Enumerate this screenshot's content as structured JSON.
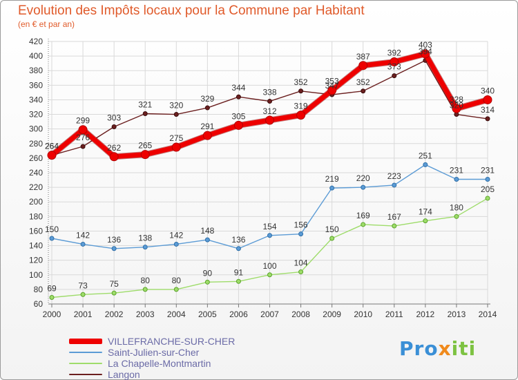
{
  "title": "Evolution des Impôts locaux pour la Commune par Habitant",
  "subtitle": "(en € et par an)",
  "logo": {
    "part1": "Pro",
    "part2": "x",
    "part3": "iti"
  },
  "chart_data": {
    "type": "line",
    "categories": [
      "2000",
      "2001",
      "2002",
      "2003",
      "2004",
      "2005",
      "2006",
      "2007",
      "2008",
      "2009",
      "2010",
      "2011",
      "2012",
      "2013",
      "2014"
    ],
    "ylim": [
      60,
      420
    ],
    "yticks": [
      60,
      80,
      100,
      120,
      140,
      160,
      180,
      200,
      220,
      240,
      260,
      280,
      300,
      320,
      340,
      360,
      380,
      400,
      420
    ],
    "grid": true,
    "series": [
      {
        "name": "Langon",
        "color": "#6b1f1f",
        "values": [
          264,
          276,
          303,
          321,
          320,
          329,
          344,
          338,
          352,
          347,
          352,
          373,
          394,
          320,
          314
        ]
      },
      {
        "name": "Saint-Julien-sur-Cher",
        "color": "#5b9bd5",
        "values": [
          150,
          142,
          136,
          138,
          142,
          148,
          136,
          154,
          156,
          219,
          220,
          223,
          251,
          231,
          231
        ]
      },
      {
        "name": "La Chapelle-Montmartin",
        "color": "#9edc6a",
        "values": [
          69,
          73,
          75,
          80,
          80,
          90,
          91,
          100,
          104,
          150,
          169,
          167,
          174,
          180,
          205
        ]
      },
      {
        "name": "VILLEFRANCHE-SUR-CHER",
        "color": "#ee0000",
        "values": [
          264,
          299,
          262,
          265,
          275,
          291,
          305,
          312,
          319,
          353,
          387,
          392,
          403,
          328,
          340
        ]
      }
    ]
  }
}
